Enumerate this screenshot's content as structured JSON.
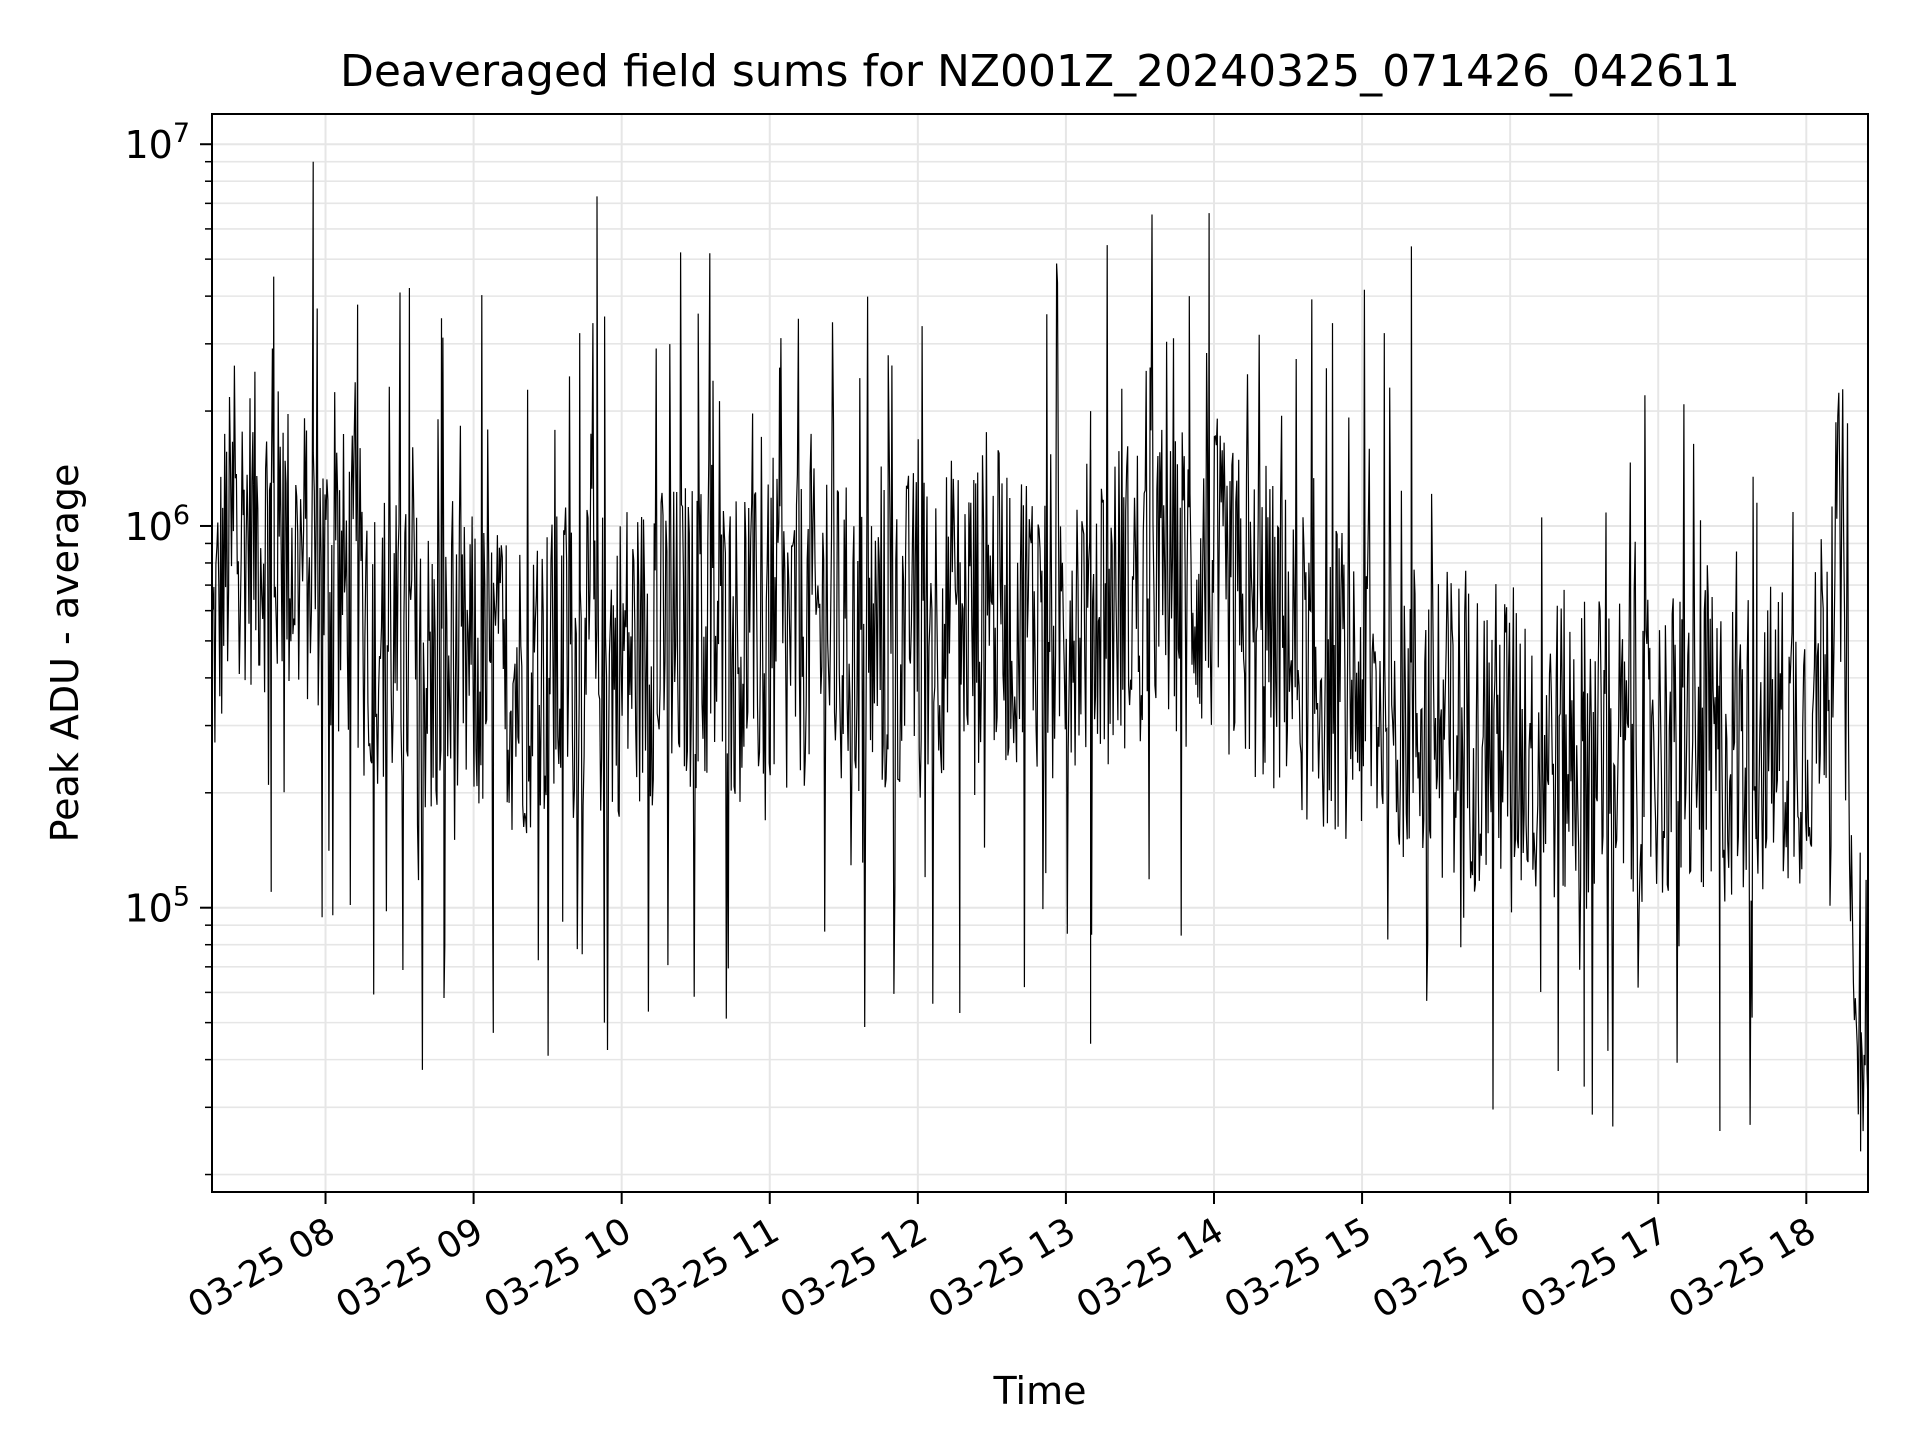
{
  "chart_data": {
    "type": "line",
    "title": "Deaveraged field sums for NZ001Z_20240325_071426_042611",
    "xlabel": "Time",
    "ylabel": "Peak ADU - average",
    "yscale": "log",
    "ylim": [
      18000,
      12000000
    ],
    "xlim": [
      "2024-03-25 07:14",
      "2024-03-25 18:25"
    ],
    "x_ticks": [
      {
        "value": "2024-03-25 08:00",
        "label": "03-25 08"
      },
      {
        "value": "2024-03-25 09:00",
        "label": "03-25 09"
      },
      {
        "value": "2024-03-25 10:00",
        "label": "03-25 10"
      },
      {
        "value": "2024-03-25 11:00",
        "label": "03-25 11"
      },
      {
        "value": "2024-03-25 12:00",
        "label": "03-25 12"
      },
      {
        "value": "2024-03-25 13:00",
        "label": "03-25 13"
      },
      {
        "value": "2024-03-25 14:00",
        "label": "03-25 14"
      },
      {
        "value": "2024-03-25 15:00",
        "label": "03-25 15"
      },
      {
        "value": "2024-03-25 16:00",
        "label": "03-25 16"
      },
      {
        "value": "2024-03-25 17:00",
        "label": "03-25 17"
      },
      {
        "value": "2024-03-25 18:00",
        "label": "03-25 18"
      }
    ],
    "y_ticks": [
      {
        "value": 100000,
        "label": "10^5"
      },
      {
        "value": 1000000,
        "label": "10^6"
      },
      {
        "value": 10000000,
        "label": "10^7"
      }
    ],
    "grid": true,
    "series_color": "#000000",
    "grid_color": "#e6e6e6",
    "series": [
      {
        "x": [
          "2024-03-25 07:14",
          "2024-03-25 07:20",
          "2024-03-25 07:27",
          "2024-03-25 07:35",
          "2024-03-25 07:42",
          "2024-03-25 07:50",
          "2024-03-25 07:55",
          "2024-03-25 07:57",
          "2024-03-25 08:00",
          "2024-03-25 08:10",
          "2024-03-25 08:20",
          "2024-03-25 08:30",
          "2024-03-25 08:40",
          "2024-03-25 08:45",
          "2024-03-25 08:50",
          "2024-03-25 09:00",
          "2024-03-25 09:10",
          "2024-03-25 09:15",
          "2024-03-25 09:20",
          "2024-03-25 09:30",
          "2024-03-25 09:40",
          "2024-03-25 09:45",
          "2024-03-25 09:50",
          "2024-03-25 10:00",
          "2024-03-25 10:10",
          "2024-03-25 10:20",
          "2024-03-25 10:30",
          "2024-03-25 10:40",
          "2024-03-25 10:50",
          "2024-03-25 11:00",
          "2024-03-25 11:10",
          "2024-03-25 11:20",
          "2024-03-25 11:30",
          "2024-03-25 11:40",
          "2024-03-25 11:50",
          "2024-03-25 12:00",
          "2024-03-25 12:10",
          "2024-03-25 12:20",
          "2024-03-25 12:30",
          "2024-03-25 12:40",
          "2024-03-25 12:50",
          "2024-03-25 13:00",
          "2024-03-25 13:10",
          "2024-03-25 13:15",
          "2024-03-25 13:20",
          "2024-03-25 13:30",
          "2024-03-25 13:40",
          "2024-03-25 13:50",
          "2024-03-25 13:58",
          "2024-03-25 14:10",
          "2024-03-25 14:20",
          "2024-03-25 14:30",
          "2024-03-25 14:40",
          "2024-03-25 14:50",
          "2024-03-25 15:00",
          "2024-03-25 15:10",
          "2024-03-25 15:20",
          "2024-03-25 15:30",
          "2024-03-25 15:40",
          "2024-03-25 15:50",
          "2024-03-25 16:00",
          "2024-03-25 16:10",
          "2024-03-25 16:20",
          "2024-03-25 16:30",
          "2024-03-25 16:40",
          "2024-03-25 16:50",
          "2024-03-25 17:00",
          "2024-03-25 17:10",
          "2024-03-25 17:20",
          "2024-03-25 17:30",
          "2024-03-25 17:40",
          "2024-03-25 17:50",
          "2024-03-25 18:00",
          "2024-03-25 18:08",
          "2024-03-25 18:10",
          "2024-03-25 18:15",
          "2024-03-25 18:20",
          "2024-03-25 18:25"
        ],
        "median": [
          450000,
          850000,
          1000000,
          950000,
          900000,
          800000,
          900000,
          850000,
          700000,
          700000,
          550000,
          450000,
          420000,
          400000,
          380000,
          420000,
          400000,
          400000,
          400000,
          420000,
          420000,
          420000,
          430000,
          450000,
          480000,
          500000,
          520000,
          500000,
          480000,
          500000,
          520000,
          550000,
          500000,
          480000,
          520000,
          560000,
          580000,
          600000,
          620000,
          600000,
          600000,
          620000,
          620000,
          620000,
          650000,
          700000,
          750000,
          750000,
          700000,
          600000,
          520000,
          480000,
          420000,
          400000,
          380000,
          350000,
          330000,
          300000,
          300000,
          280000,
          280000,
          270000,
          260000,
          260000,
          260000,
          260000,
          260000,
          260000,
          260000,
          260000,
          270000,
          280000,
          300000,
          500000,
          800000,
          900000,
          38000,
          35000
        ],
        "peaks": [
          {
            "x": "2024-03-25 07:39",
            "value": 4500000
          },
          {
            "x": "2024-03-25 07:55",
            "value": 9000000
          },
          {
            "x": "2024-03-25 08:13",
            "value": 3800000
          },
          {
            "x": "2024-03-25 08:34",
            "value": 4200000
          },
          {
            "x": "2024-03-25 08:47",
            "value": 3500000
          },
          {
            "x": "2024-03-25 09:43",
            "value": 3200000
          },
          {
            "x": "2024-03-25 09:50",
            "value": 7300000
          },
          {
            "x": "2024-03-25 10:31",
            "value": 3600000
          },
          {
            "x": "2024-03-25 10:37",
            "value": 2400000
          },
          {
            "x": "2024-03-25 11:04",
            "value": 2600000
          },
          {
            "x": "2024-03-25 11:48",
            "value": 2800000
          },
          {
            "x": "2024-03-25 13:10",
            "value": 2000000
          },
          {
            "x": "2024-03-25 13:50",
            "value": 4000000
          },
          {
            "x": "2024-03-25 13:58",
            "value": 6600000
          },
          {
            "x": "2024-03-25 14:48",
            "value": 3400000
          },
          {
            "x": "2024-03-25 15:09",
            "value": 3200000
          },
          {
            "x": "2024-03-25 15:20",
            "value": 5400000
          },
          {
            "x": "2024-03-25 17:40",
            "value": 1150000
          }
        ],
        "troughs": [
          {
            "x": "2024-03-25 07:38",
            "value": 110000
          },
          {
            "x": "2024-03-25 08:48",
            "value": 58000
          },
          {
            "x": "2024-03-25 09:08",
            "value": 47000
          },
          {
            "x": "2024-03-25 09:53",
            "value": 50000
          },
          {
            "x": "2024-03-25 12:17",
            "value": 53000
          },
          {
            "x": "2024-03-25 13:10",
            "value": 44000
          },
          {
            "x": "2024-03-25 16:30",
            "value": 34000
          },
          {
            "x": "2024-03-25 17:25",
            "value": 26000
          },
          {
            "x": "2024-03-25 18:22",
            "value": 23000
          }
        ]
      }
    ]
  }
}
